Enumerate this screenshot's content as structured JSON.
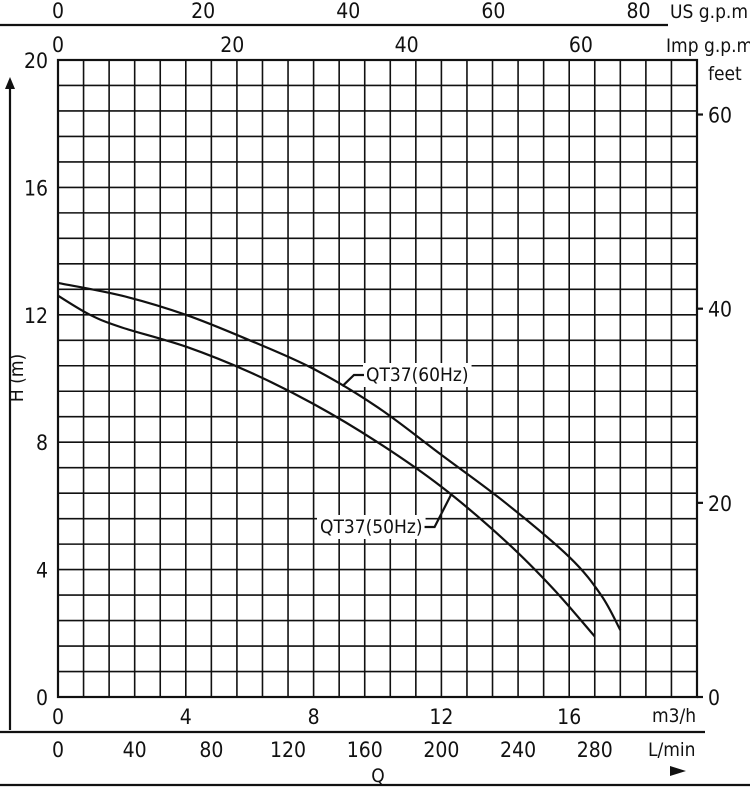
{
  "chart_data": {
    "type": "line",
    "ylabel": "H (m)",
    "xlabel": "Q",
    "ylim": [
      0,
      20
    ],
    "xlim_m3h": [
      0,
      20
    ],
    "grid": true,
    "axes": {
      "left": {
        "unit": "H (m)",
        "ticks": [
          0,
          4,
          8,
          12,
          16,
          20
        ]
      },
      "right": {
        "unit": "feet",
        "ticks": [
          0,
          20,
          40,
          60
        ]
      },
      "bottom_m3h": {
        "unit": "m3/h",
        "ticks": [
          0,
          4,
          8,
          12,
          16
        ]
      },
      "bottom_lmin": {
        "unit": "L/min",
        "ticks": [
          0,
          40,
          80,
          120,
          160,
          200,
          240,
          280
        ]
      },
      "top_us": {
        "unit": "US g.p.m",
        "ticks": [
          0,
          20,
          40,
          60,
          80
        ]
      },
      "top_imp": {
        "unit": "Imp g.p.m",
        "ticks": [
          0,
          20,
          40,
          60
        ]
      }
    },
    "series": [
      {
        "name": "QT37(60Hz)",
        "x": [
          0,
          2,
          4,
          6,
          8,
          10,
          12,
          14,
          16,
          17,
          17.6
        ],
        "y": [
          13.0,
          12.6,
          12.0,
          11.2,
          10.3,
          9.1,
          7.6,
          6.1,
          4.4,
          3.2,
          2.1
        ]
      },
      {
        "name": "QT37(50Hz)",
        "x": [
          0,
          1,
          2,
          4,
          6,
          8,
          10,
          12,
          14,
          15.5,
          16.8
        ],
        "y": [
          12.6,
          12.0,
          11.6,
          11.0,
          10.2,
          9.2,
          8.0,
          6.6,
          4.9,
          3.4,
          1.9
        ]
      }
    ]
  }
}
